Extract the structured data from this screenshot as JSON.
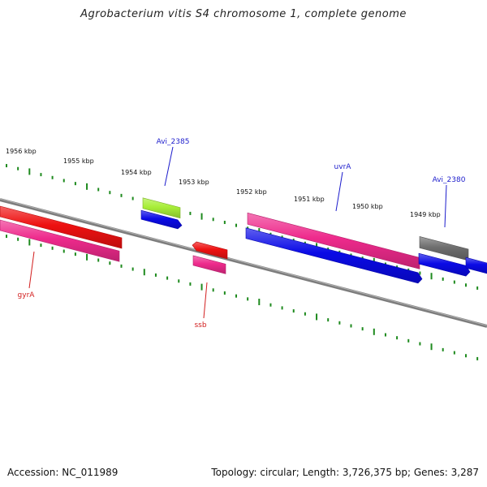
{
  "header": {
    "title": "Agrobacterium vitis S4 chromosome 1, complete genome"
  },
  "footer": {
    "accession": "Accession: NC_011989",
    "stats": "Topology: circular; Length: 3,726,375 bp; Genes: 3,287"
  },
  "colors": {
    "backbone": "#7d7d7d",
    "tick": "#1e8a1e",
    "label_forward": "#1c1ccc",
    "label_reverse": "#d21e1e",
    "blue": "#0a0ae6",
    "red": "#ee1111",
    "pink": "#ee2a8c",
    "lime": "#a8ee38",
    "gray": "#6e6e6e"
  },
  "scale": {
    "unit": "kbp",
    "tick_labels": [
      "1956 kbp",
      "1955 kbp",
      "1954 kbp",
      "1953 kbp",
      "1952 kbp",
      "1951 kbp",
      "1950 kbp",
      "1949 kbp"
    ]
  },
  "genes": [
    {
      "label": "Avi_2385",
      "strand": "forward",
      "color": "lime",
      "arrow": "none"
    },
    {
      "label": "",
      "strand": "forward",
      "color": "blue",
      "arrow": "right"
    },
    {
      "label": "uvrA",
      "strand": "forward",
      "color": "pink",
      "arrow": "none"
    },
    {
      "label": "",
      "strand": "forward",
      "color": "blue",
      "arrow": "right"
    },
    {
      "label": "Avi_2380",
      "strand": "forward",
      "color": "gray",
      "arrow": "none"
    },
    {
      "label": "",
      "strand": "forward",
      "color": "blue",
      "arrow": "right"
    },
    {
      "label": "",
      "strand": "forward",
      "color": "blue",
      "arrow": "right"
    },
    {
      "label": "gyrA",
      "strand": "reverse",
      "color": "red",
      "arrow": "none"
    },
    {
      "label": "",
      "strand": "reverse",
      "color": "pink",
      "arrow": "none"
    },
    {
      "label": "ssb",
      "strand": "reverse",
      "color": "red",
      "arrow": "left"
    },
    {
      "label": "",
      "strand": "reverse",
      "color": "pink",
      "arrow": "none"
    }
  ]
}
